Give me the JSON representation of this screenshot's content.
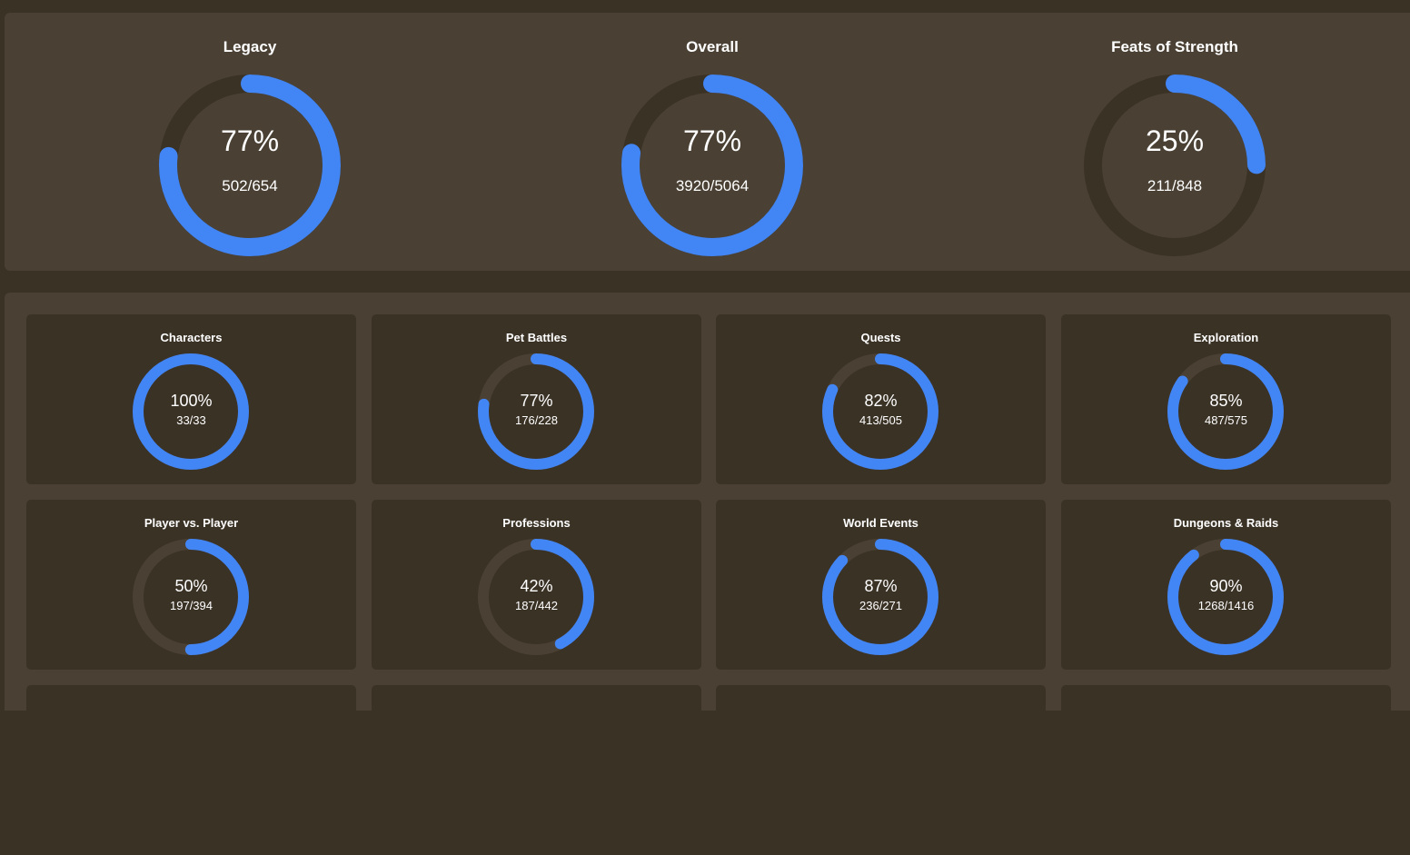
{
  "colors": {
    "accent": "#4285f4",
    "track": "#3b3226",
    "card_track": "#4a4134"
  },
  "summary": [
    {
      "title": "Legacy",
      "percent_label": "77%",
      "count_label": "502/654",
      "fraction": 0.7676
    },
    {
      "title": "Overall",
      "percent_label": "77%",
      "count_label": "3920/5064",
      "fraction": 0.7741
    },
    {
      "title": "Feats of Strength",
      "percent_label": "25%",
      "count_label": "211/848",
      "fraction": 0.2488
    }
  ],
  "categories": [
    {
      "title": "Characters",
      "percent_label": "100%",
      "count_label": "33/33",
      "fraction": 1.0
    },
    {
      "title": "Pet Battles",
      "percent_label": "77%",
      "count_label": "176/228",
      "fraction": 0.7719
    },
    {
      "title": "Quests",
      "percent_label": "82%",
      "count_label": "413/505",
      "fraction": 0.8178
    },
    {
      "title": "Exploration",
      "percent_label": "85%",
      "count_label": "487/575",
      "fraction": 0.847
    },
    {
      "title": "Player vs. Player",
      "percent_label": "50%",
      "count_label": "197/394",
      "fraction": 0.5
    },
    {
      "title": "Professions",
      "percent_label": "42%",
      "count_label": "187/442",
      "fraction": 0.4231
    },
    {
      "title": "World Events",
      "percent_label": "87%",
      "count_label": "236/271",
      "fraction": 0.8708
    },
    {
      "title": "Dungeons & Raids",
      "percent_label": "90%",
      "count_label": "1268/1416",
      "fraction": 0.8955
    }
  ]
}
